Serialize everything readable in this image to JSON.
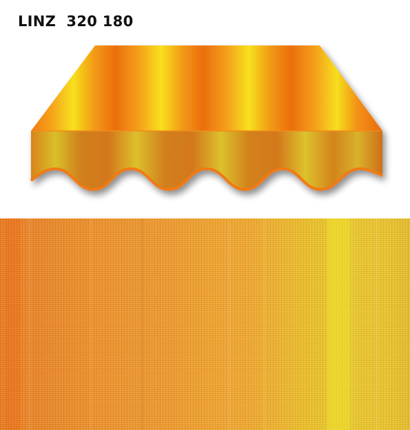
{
  "product": {
    "title": "LINZ  320 180"
  },
  "colors": {
    "orange": "#f07a10",
    "deep_orange": "#e86a12",
    "yellow": "#f4dc1c",
    "valance_orange": "#d2791c",
    "valance_yellow": "#d8c42a"
  }
}
